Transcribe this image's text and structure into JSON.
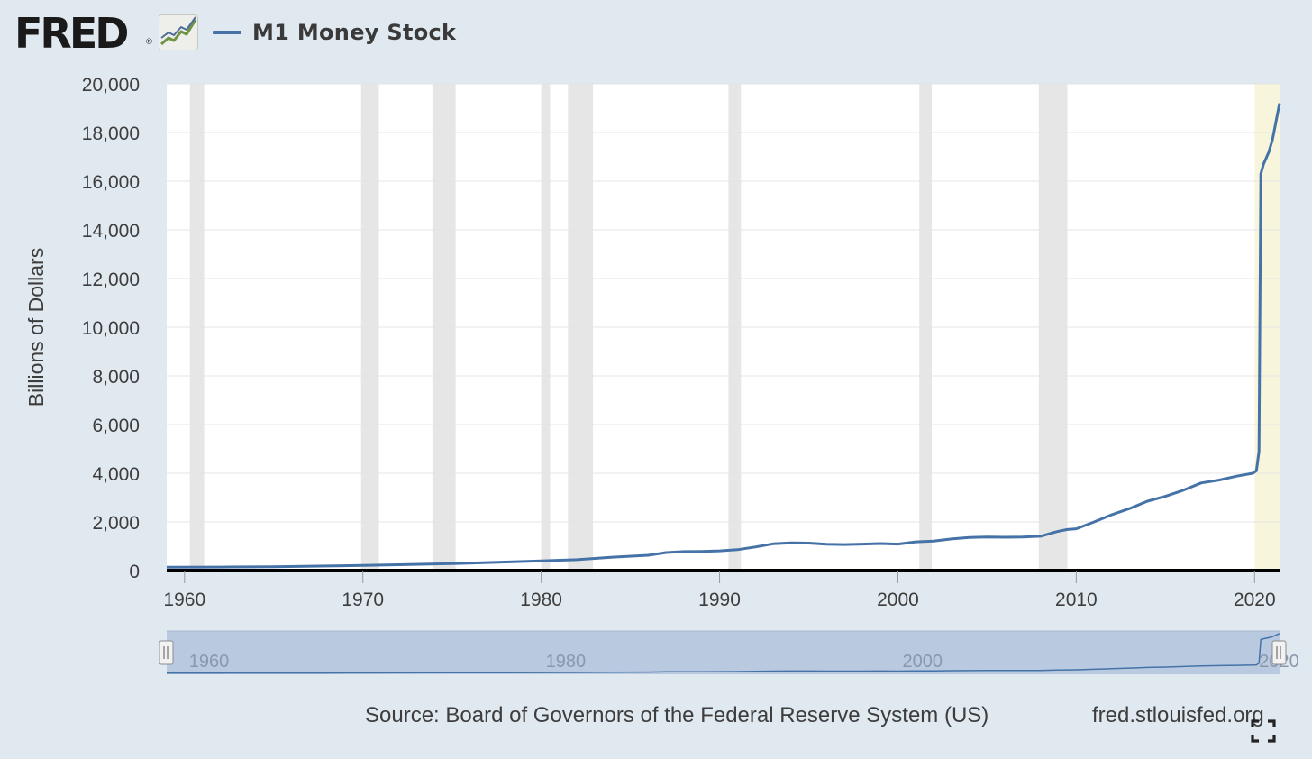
{
  "header": {
    "logo_text": "FRED",
    "logo_mark": "®",
    "logo_icon": "trend-lines-icon",
    "series_legend": "M1 Money Stock"
  },
  "colors": {
    "series": "#4572a7",
    "recession_shade": "#e6e6e6",
    "highlight": "#f7f6dd",
    "background": "#e1e9f0",
    "navigator_fill": "#b9c9e0"
  },
  "chart_data": {
    "type": "line",
    "title": "",
    "xlabel": "",
    "ylabel": "Billions of Dollars",
    "xlim": [
      1959,
      2021.4
    ],
    "ylim": [
      0,
      20000
    ],
    "y_ticks": [
      0,
      2000,
      4000,
      6000,
      8000,
      10000,
      12000,
      14000,
      16000,
      18000,
      20000
    ],
    "y_tick_labels": [
      "0",
      "2,000",
      "4,000",
      "6,000",
      "8,000",
      "10,000",
      "12,000",
      "14,000",
      "16,000",
      "18,000",
      "20,000"
    ],
    "x_ticks": [
      1960,
      1970,
      1980,
      1990,
      2000,
      2010,
      2020
    ],
    "x_tick_labels": [
      "1960",
      "1970",
      "1980",
      "1990",
      "2000",
      "2010",
      "2020"
    ],
    "grid": "horizontal",
    "legend_position": "top-left",
    "recession_bands": [
      [
        1960.3,
        1961.1
      ],
      [
        1969.9,
        1970.9
      ],
      [
        1973.9,
        1975.2
      ],
      [
        1980.0,
        1980.5
      ],
      [
        1981.5,
        1982.9
      ],
      [
        1990.5,
        1991.2
      ],
      [
        2001.2,
        2001.9
      ],
      [
        2007.9,
        2009.5
      ]
    ],
    "highlight_band": [
      2020.0,
      2021.4
    ],
    "series": [
      {
        "name": "M1 Money Stock",
        "x": [
          1959,
          1962,
          1965,
          1968,
          1970,
          1972,
          1975,
          1978,
          1980,
          1982,
          1984,
          1986,
          1987,
          1988,
          1989,
          1990,
          1991,
          1992,
          1993,
          1994,
          1995,
          1996,
          1997,
          1998,
          1999,
          2000,
          2001,
          2002,
          2003,
          2004,
          2005,
          2006,
          2007,
          2008,
          2008.9,
          2009.5,
          2010,
          2011,
          2011.5,
          2012,
          2013,
          2014,
          2015,
          2016,
          2017,
          2018,
          2019,
          2019.9,
          2020.1,
          2020.25,
          2020.35,
          2020.5,
          2020.8,
          2021,
          2021.4
        ],
        "values": [
          140,
          145,
          160,
          190,
          210,
          240,
          285,
          350,
          395,
          450,
          550,
          630,
          740,
          780,
          790,
          810,
          860,
          970,
          1100,
          1140,
          1130,
          1080,
          1070,
          1090,
          1110,
          1090,
          1180,
          1210,
          1300,
          1360,
          1380,
          1370,
          1380,
          1410,
          1600,
          1690,
          1720,
          2000,
          2150,
          2300,
          2550,
          2850,
          3050,
          3300,
          3600,
          3720,
          3880,
          4000,
          4100,
          4900,
          16300,
          16700,
          17200,
          17700,
          19200
        ]
      }
    ],
    "navigator": {
      "x_labels": [
        "1960",
        "1980",
        "2000",
        "2020"
      ]
    }
  },
  "footer": {
    "source": "Source: Board of Governors of the Federal Reserve System (US)",
    "site": "fred.stlouisfed.org",
    "fullscreen_icon": "fullscreen-icon"
  }
}
